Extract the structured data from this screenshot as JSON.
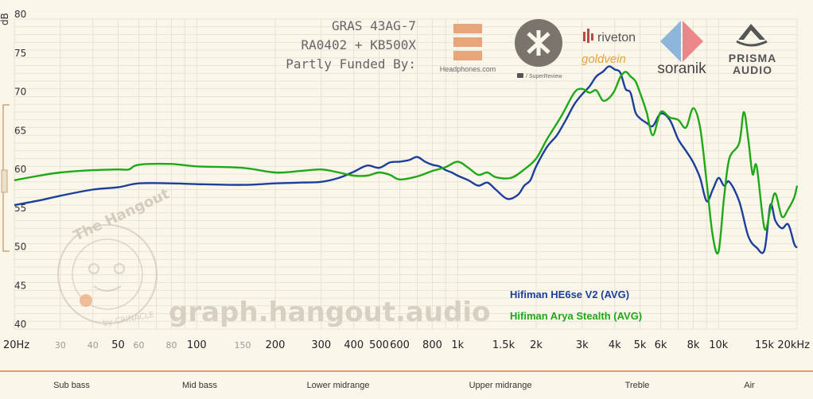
{
  "header": {
    "line1": "GRAS 43AG-7",
    "line2": "RA0402 + KB500X",
    "line3": "Partly Funded By:"
  },
  "sponsors": {
    "headphones": "Headphones.com",
    "superreview": "/ SuperReview",
    "riveton": "riveton",
    "goldvein": "goldvein",
    "soranik": "soranik",
    "prisma1": "PRISMA",
    "prisma2": "AUDIO"
  },
  "watermark": {
    "site": "graph.hangout.audio",
    "badge": "The Hangout",
    "badge_sub": "by CRINACLE"
  },
  "bands": [
    "Sub bass",
    "Mid bass",
    "Lower midrange",
    "Upper midrange",
    "Treble",
    "Air"
  ],
  "colors": {
    "background": "#fbf6ea",
    "grid": "#e4ded2",
    "he6se": "#1c3f9c",
    "arya": "#1fa817",
    "accent": "#e07b39"
  },
  "chart_data": {
    "type": "line",
    "title": "",
    "xlabel": "",
    "ylabel": "dB",
    "x_scale": "log",
    "xlim": [
      20,
      20000
    ],
    "ylim": [
      40,
      80
    ],
    "y_ticks": [
      40,
      45,
      50,
      55,
      60,
      65,
      70,
      75,
      80
    ],
    "x_ticks_major": [
      {
        "v": 20,
        "label": "20Hz"
      },
      {
        "v": 50,
        "label": "50"
      },
      {
        "v": 100,
        "label": "100"
      },
      {
        "v": 200,
        "label": "200"
      },
      {
        "v": 300,
        "label": "300"
      },
      {
        "v": 400,
        "label": "400"
      },
      {
        "v": 500,
        "label": "500"
      },
      {
        "v": 600,
        "label": "600"
      },
      {
        "v": 800,
        "label": "800"
      },
      {
        "v": 1000,
        "label": "1k"
      },
      {
        "v": 1500,
        "label": "1.5k"
      },
      {
        "v": 2000,
        "label": "2k"
      },
      {
        "v": 3000,
        "label": "3k"
      },
      {
        "v": 4000,
        "label": "4k"
      },
      {
        "v": 5000,
        "label": "5k"
      },
      {
        "v": 6000,
        "label": "6k"
      },
      {
        "v": 8000,
        "label": "8k"
      },
      {
        "v": 10000,
        "label": "10k"
      },
      {
        "v": 15000,
        "label": "15k"
      },
      {
        "v": 20000,
        "label": "20kHz"
      }
    ],
    "x_ticks_minor": [
      {
        "v": 30,
        "label": "30"
      },
      {
        "v": 40,
        "label": "40"
      },
      {
        "v": 60,
        "label": "60"
      },
      {
        "v": 80,
        "label": "80"
      },
      {
        "v": 150,
        "label": "150"
      }
    ],
    "grid": true,
    "legend_position": "bottom-right",
    "series": [
      {
        "name": "Hifiman HE6se V2 (AVG)",
        "color": "#1c3f9c",
        "points": [
          [
            20,
            56.0
          ],
          [
            25,
            56.6
          ],
          [
            30,
            57.2
          ],
          [
            40,
            58.0
          ],
          [
            50,
            58.3
          ],
          [
            60,
            58.8
          ],
          [
            80,
            58.8
          ],
          [
            100,
            58.7
          ],
          [
            150,
            58.6
          ],
          [
            200,
            58.8
          ],
          [
            250,
            58.9
          ],
          [
            300,
            59.0
          ],
          [
            350,
            59.5
          ],
          [
            400,
            60.3
          ],
          [
            450,
            61.1
          ],
          [
            500,
            60.8
          ],
          [
            550,
            61.5
          ],
          [
            600,
            61.6
          ],
          [
            650,
            61.8
          ],
          [
            700,
            62.2
          ],
          [
            750,
            61.6
          ],
          [
            800,
            61.2
          ],
          [
            850,
            61.0
          ],
          [
            900,
            60.5
          ],
          [
            950,
            60.2
          ],
          [
            1000,
            59.8
          ],
          [
            1100,
            59.2
          ],
          [
            1200,
            58.5
          ],
          [
            1300,
            58.9
          ],
          [
            1400,
            58.0
          ],
          [
            1550,
            56.8
          ],
          [
            1700,
            57.3
          ],
          [
            1800,
            58.5
          ],
          [
            1900,
            59.2
          ],
          [
            2000,
            61.0
          ],
          [
            2200,
            63.5
          ],
          [
            2400,
            65.0
          ],
          [
            2600,
            67.0
          ],
          [
            2800,
            69.0
          ],
          [
            3000,
            70.3
          ],
          [
            3200,
            71.3
          ],
          [
            3400,
            72.6
          ],
          [
            3600,
            73.2
          ],
          [
            3800,
            73.9
          ],
          [
            4000,
            73.5
          ],
          [
            4200,
            73.1
          ],
          [
            4400,
            71.0
          ],
          [
            4600,
            70.5
          ],
          [
            4800,
            68.0
          ],
          [
            5000,
            67.2
          ],
          [
            5300,
            66.6
          ],
          [
            5600,
            66.2
          ],
          [
            6000,
            67.8
          ],
          [
            6500,
            67.0
          ],
          [
            7000,
            64.5
          ],
          [
            7500,
            63.0
          ],
          [
            8000,
            61.5
          ],
          [
            8500,
            59.5
          ],
          [
            9000,
            56.5
          ],
          [
            9500,
            58.0
          ],
          [
            10000,
            59.5
          ],
          [
            10500,
            58.5
          ],
          [
            11000,
            59.0
          ],
          [
            12000,
            56.5
          ],
          [
            13000,
            52.0
          ],
          [
            14000,
            50.5
          ],
          [
            15000,
            50.2
          ],
          [
            15800,
            56.0
          ],
          [
            16500,
            54.0
          ],
          [
            17500,
            53.0
          ],
          [
            18500,
            53.5
          ],
          [
            19500,
            51.0
          ],
          [
            20000,
            50.5
          ]
        ]
      },
      {
        "name": "Hifiman Arya Stealth (AVG)",
        "color": "#1fa817",
        "points": [
          [
            20,
            59.2
          ],
          [
            25,
            59.8
          ],
          [
            30,
            60.2
          ],
          [
            40,
            60.5
          ],
          [
            50,
            60.6
          ],
          [
            55,
            60.6
          ],
          [
            60,
            61.2
          ],
          [
            80,
            61.3
          ],
          [
            100,
            61.0
          ],
          [
            150,
            60.8
          ],
          [
            200,
            60.2
          ],
          [
            250,
            60.4
          ],
          [
            300,
            60.6
          ],
          [
            350,
            60.2
          ],
          [
            400,
            59.8
          ],
          [
            450,
            59.8
          ],
          [
            500,
            60.2
          ],
          [
            550,
            59.9
          ],
          [
            600,
            59.3
          ],
          [
            700,
            59.7
          ],
          [
            800,
            60.4
          ],
          [
            900,
            60.9
          ],
          [
            1000,
            61.6
          ],
          [
            1100,
            60.8
          ],
          [
            1200,
            59.9
          ],
          [
            1300,
            60.2
          ],
          [
            1400,
            59.6
          ],
          [
            1600,
            59.5
          ],
          [
            1800,
            60.6
          ],
          [
            2000,
            62.0
          ],
          [
            2200,
            64.5
          ],
          [
            2500,
            67.5
          ],
          [
            2800,
            70.5
          ],
          [
            3000,
            71.0
          ],
          [
            3200,
            70.5
          ],
          [
            3400,
            70.8
          ],
          [
            3600,
            69.5
          ],
          [
            3800,
            69.8
          ],
          [
            4000,
            70.8
          ],
          [
            4200,
            72.5
          ],
          [
            4400,
            73.2
          ],
          [
            4600,
            72.6
          ],
          [
            4800,
            72.0
          ],
          [
            5000,
            70.5
          ],
          [
            5300,
            68.0
          ],
          [
            5600,
            65.0
          ],
          [
            6000,
            68.0
          ],
          [
            6500,
            67.3
          ],
          [
            7000,
            67.0
          ],
          [
            7500,
            66.0
          ],
          [
            8000,
            68.5
          ],
          [
            8500,
            66.0
          ],
          [
            9000,
            59.0
          ],
          [
            9500,
            52.0
          ],
          [
            10000,
            50.0
          ],
          [
            10500,
            57.0
          ],
          [
            11000,
            62.0
          ],
          [
            12000,
            64.0
          ],
          [
            12500,
            68.0
          ],
          [
            13000,
            64.5
          ],
          [
            13500,
            60.0
          ],
          [
            14000,
            61.0
          ],
          [
            15000,
            53.0
          ],
          [
            15800,
            55.5
          ],
          [
            16500,
            57.5
          ],
          [
            17500,
            54.5
          ],
          [
            18500,
            55.5
          ],
          [
            19500,
            57.0
          ],
          [
            20000,
            58.5
          ]
        ]
      }
    ]
  }
}
